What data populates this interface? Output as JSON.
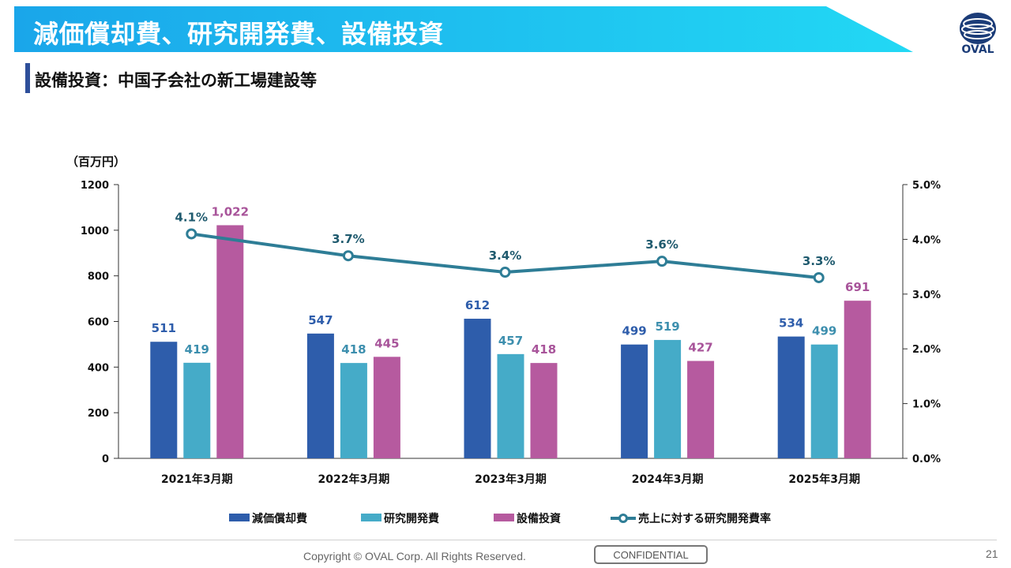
{
  "slide": {
    "title": "減価償却費、研究開発費、設備投資",
    "subtitle": "設備投資：中国子会社の新工場建設等",
    "logo_text": "OVAL",
    "copyright": "Copyright © OVAL Corp. All Rights Reserved.",
    "confidential": "CONFIDENTIAL",
    "page_number": "21"
  },
  "colors": {
    "banner_start": "#1aa6ea",
    "banner_end": "#22d8f4",
    "depreciation": "#2e5dab",
    "rnd": "#45abc8",
    "capex": "#b65a9f",
    "rate_line": "#2e7d96",
    "depreciation_label": "#2e5dab",
    "rnd_label": "#3d8fae",
    "capex_label": "#a8549a",
    "rate_label": "#1f5a6e"
  },
  "chart_data": {
    "type": "bar",
    "unit_label": "（百万円）",
    "categories": [
      "2021年3月期",
      "2022年3月期",
      "2023年3月期",
      "2024年3月期",
      "2025年3月期"
    ],
    "y_ticks": [
      "0",
      "200",
      "400",
      "600",
      "800",
      "1000",
      "1200"
    ],
    "ylim": [
      0,
      1200
    ],
    "y2_ticks": [
      "0.0%",
      "1.0%",
      "2.0%",
      "3.0%",
      "4.0%",
      "5.0%"
    ],
    "y2lim": [
      0,
      5
    ],
    "series": [
      {
        "name": "減価償却費",
        "type": "bar",
        "values": [
          511,
          547,
          612,
          499,
          534
        ],
        "labels": [
          "511",
          "547",
          "612",
          "499",
          "534"
        ]
      },
      {
        "name": "研究開発費",
        "type": "bar",
        "values": [
          419,
          418,
          457,
          519,
          499
        ],
        "labels": [
          "419",
          "418",
          "457",
          "519",
          "499"
        ]
      },
      {
        "name": "設備投資",
        "type": "bar",
        "values": [
          1022,
          445,
          418,
          427,
          691
        ],
        "labels": [
          "1,022",
          "445",
          "418",
          "427",
          "691"
        ]
      },
      {
        "name": "売上に対する研究開発費率",
        "type": "line",
        "axis": "right",
        "values": [
          4.1,
          3.7,
          3.4,
          3.6,
          3.3
        ],
        "labels": [
          "4.1%",
          "3.7%",
          "3.4%",
          "3.6%",
          "3.3%"
        ]
      }
    ],
    "legend_position": "bottom",
    "grid": false
  }
}
